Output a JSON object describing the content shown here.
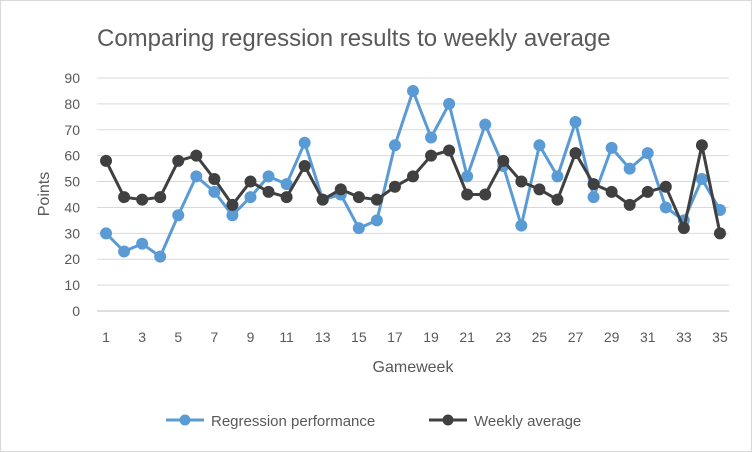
{
  "chart_data": {
    "type": "line",
    "title": "Comparing regression results to weekly average",
    "xlabel": "Gameweek",
    "ylabel": "Points",
    "ylim": [
      0,
      90
    ],
    "y_ticks": [
      "0",
      "10",
      "20",
      "30",
      "40",
      "50",
      "60",
      "70",
      "80",
      "90"
    ],
    "x": [
      1,
      2,
      3,
      4,
      5,
      6,
      7,
      8,
      9,
      10,
      11,
      12,
      13,
      14,
      15,
      16,
      17,
      18,
      19,
      20,
      21,
      22,
      23,
      24,
      25,
      26,
      27,
      28,
      29,
      30,
      31,
      32,
      33,
      34,
      35
    ],
    "x_tick_labels": [
      "1",
      "3",
      "5",
      "7",
      "9",
      "11",
      "13",
      "15",
      "17",
      "19",
      "21",
      "23",
      "25",
      "27",
      "29",
      "31",
      "33",
      "35"
    ],
    "grid": true,
    "legend_position": "bottom",
    "series": [
      {
        "name": "Regression performance",
        "color": "#5b9bd5",
        "values": [
          30,
          23,
          26,
          21,
          37,
          52,
          46,
          37,
          44,
          52,
          49,
          65,
          43,
          45,
          32,
          35,
          64,
          85,
          67,
          80,
          52,
          72,
          56,
          33,
          64,
          52,
          73,
          44,
          63,
          55,
          61,
          40,
          35,
          51,
          39
        ]
      },
      {
        "name": "Weekly average",
        "color": "#404040",
        "values": [
          58,
          44,
          43,
          44,
          58,
          60,
          51,
          41,
          50,
          46,
          44,
          56,
          43,
          47,
          44,
          43,
          48,
          52,
          60,
          62,
          45,
          45,
          58,
          50,
          47,
          43,
          61,
          49,
          46,
          41,
          46,
          48,
          32,
          64,
          30
        ]
      }
    ]
  }
}
